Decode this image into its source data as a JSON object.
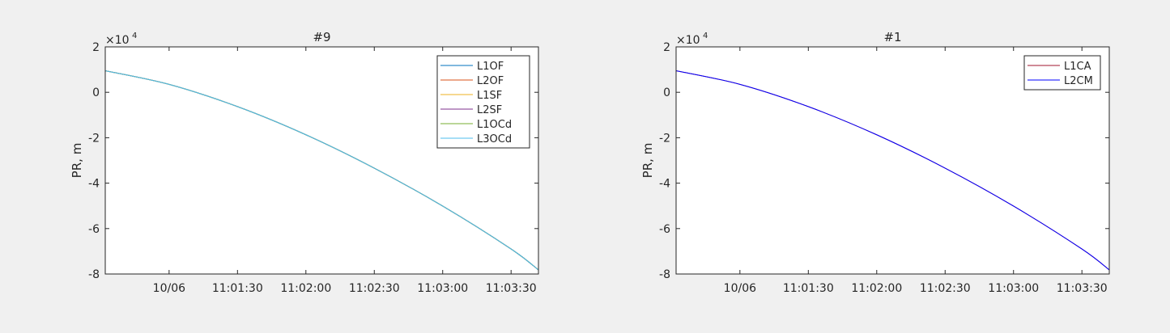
{
  "chart_data": [
    {
      "type": "line",
      "title": "#9",
      "ylabel": "PR, m",
      "xlabel": "",
      "y_exponent_label": "×10",
      "y_exponent": "4",
      "ylim": [
        -8,
        2
      ],
      "yticks": [
        2,
        0,
        -2,
        -4,
        -6,
        -8
      ],
      "ytick_labels": [
        "2",
        "0",
        "-2",
        "-4",
        "-6",
        "-8"
      ],
      "xlim": [
        "11:00:32",
        "11:03:42"
      ],
      "xticks": [
        "11:01:00",
        "11:01:30",
        "11:02:00",
        "11:02:30",
        "11:03:00",
        "11:03:30"
      ],
      "xtick_labels": [
        "10/06",
        "11:01:30",
        "11:02:00",
        "11:02:30",
        "11:03:00",
        "11:03:30"
      ],
      "grid": false,
      "legend_position": "top-right",
      "x": [
        "11:00:32",
        "11:01:00",
        "11:01:30",
        "11:02:00",
        "11:02:30",
        "11:03:00",
        "11:03:30",
        "11:03:42"
      ],
      "y": [
        0.95,
        0.35,
        -0.63,
        -1.87,
        -3.34,
        -5.01,
        -6.9,
        -7.82
      ],
      "series": [
        {
          "name": "L1OF",
          "color": "#0072BD"
        },
        {
          "name": "L2OF",
          "color": "#D95319"
        },
        {
          "name": "L1SF",
          "color": "#EDB120"
        },
        {
          "name": "L2SF",
          "color": "#7E2F8E"
        },
        {
          "name": "L1OCd",
          "color": "#77AC30"
        },
        {
          "name": "L3OCd",
          "color": "#4DBEEE"
        }
      ]
    },
    {
      "type": "line",
      "title": "#1",
      "ylabel": "PR, m",
      "xlabel": "",
      "y_exponent_label": "×10",
      "y_exponent": "4",
      "ylim": [
        -8,
        2
      ],
      "yticks": [
        2,
        0,
        -2,
        -4,
        -6,
        -8
      ],
      "ytick_labels": [
        "2",
        "0",
        "-2",
        "-4",
        "-6",
        "-8"
      ],
      "xlim": [
        "11:00:32",
        "11:03:42"
      ],
      "xticks": [
        "11:01:00",
        "11:01:30",
        "11:02:00",
        "11:02:30",
        "11:03:00",
        "11:03:30"
      ],
      "xtick_labels": [
        "10/06",
        "11:01:30",
        "11:02:00",
        "11:02:30",
        "11:03:00",
        "11:03:30"
      ],
      "grid": false,
      "legend_position": "top-right",
      "x": [
        "11:00:32",
        "11:01:00",
        "11:01:30",
        "11:02:00",
        "11:02:30",
        "11:03:00",
        "11:03:30",
        "11:03:42"
      ],
      "y": [
        0.95,
        0.35,
        -0.63,
        -1.87,
        -3.34,
        -5.01,
        -6.9,
        -7.82
      ],
      "series": [
        {
          "name": "L1CA",
          "color": "#A2142F"
        },
        {
          "name": "L2CM",
          "color": "#0000FF"
        }
      ]
    }
  ]
}
